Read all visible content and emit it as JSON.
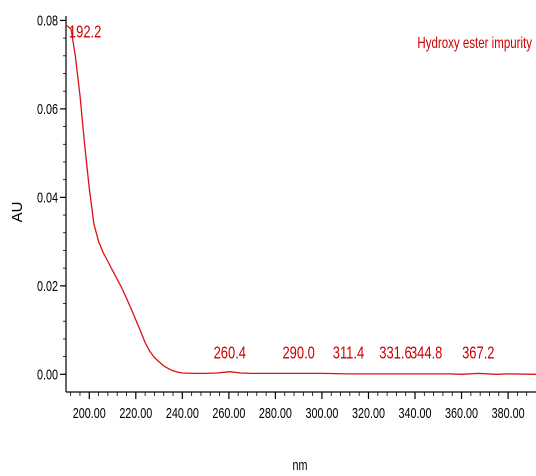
{
  "chart_data": {
    "type": "line",
    "legend": "Hydroxy ester impurity",
    "xlabel": "nm",
    "ylabel": "AU",
    "xlim": [
      190,
      392
    ],
    "ylim": [
      -0.004,
      0.081
    ],
    "x_ticks": [
      200,
      220,
      240,
      260,
      280,
      300,
      320,
      340,
      360,
      380
    ],
    "x_tick_labels": [
      "200.00",
      "220.00",
      "240.00",
      "260.00",
      "280.00",
      "300.00",
      "320.00",
      "340.00",
      "360.00",
      "380.00"
    ],
    "y_ticks": [
      0,
      0.02,
      0.04,
      0.06,
      0.08
    ],
    "y_tick_labels": [
      "0.00",
      "0.02",
      "0.04",
      "0.06",
      "0.08"
    ],
    "peaks": [
      {
        "x": 192.2,
        "label": "192.2"
      },
      {
        "x": 260.4,
        "label": "260.4"
      },
      {
        "x": 290.0,
        "label": "290.0"
      },
      {
        "x": 311.4,
        "label": "311.4"
      },
      {
        "x": 331.6,
        "label": "331.6"
      },
      {
        "x": 344.8,
        "label": "344.8"
      },
      {
        "x": 367.2,
        "label": "367.2"
      }
    ],
    "series": [
      {
        "color": "#dd1111",
        "x": [
          190,
          192.2,
          194,
          196,
          198,
          200,
          202,
          204,
          206,
          208,
          210,
          212,
          214,
          216,
          218,
          220,
          222,
          224,
          226,
          228,
          230,
          232,
          234,
          236,
          238,
          240,
          245,
          250,
          255,
          260.4,
          265,
          270,
          280,
          290,
          300,
          311.4,
          320,
          331.6,
          340,
          344.8,
          355,
          360,
          367.2,
          375,
          380,
          392
        ],
        "y": [
          0.079,
          0.078,
          0.072,
          0.063,
          0.052,
          0.042,
          0.034,
          0.03,
          0.0275,
          0.0255,
          0.0235,
          0.0215,
          0.0195,
          0.0172,
          0.0148,
          0.0123,
          0.0098,
          0.0072,
          0.0052,
          0.0038,
          0.0028,
          0.0019,
          0.0013,
          0.0008,
          0.0005,
          0.0003,
          0.0002,
          0.0002,
          0.0003,
          0.0006,
          0.0003,
          0.0002,
          0.0002,
          0.0002,
          0.0002,
          0.0001,
          0.0001,
          0.0001,
          0.0001,
          0.0001,
          0.0001,
          0.0,
          0.0002,
          0.0,
          0.0001,
          0.0
        ]
      }
    ]
  }
}
